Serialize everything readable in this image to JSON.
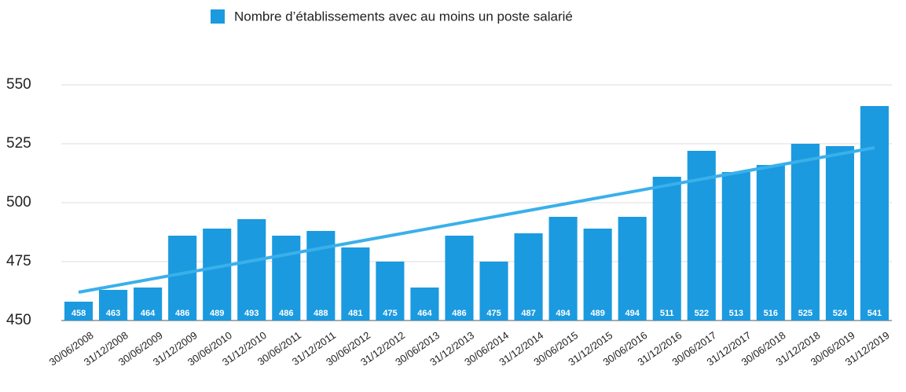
{
  "chart_data": {
    "type": "bar",
    "categories": [
      "30/06/2008",
      "31/12/2008",
      "30/06/2009",
      "31/12/2009",
      "30/06/2010",
      "31/12/2010",
      "30/06/2011",
      "31/12/2011",
      "30/06/2012",
      "31/12/2012",
      "30/06/2013",
      "31/12/2013",
      "30/06/2014",
      "31/12/2014",
      "30/06/2015",
      "31/12/2015",
      "30/06/2016",
      "31/12/2016",
      "30/06/2017",
      "31/12/2017",
      "30/06/2018",
      "31/12/2018",
      "30/06/2019",
      "31/12/2019"
    ],
    "series": [
      {
        "name": "Nombre d’établissements avec au moins un poste salarié",
        "color": "#1b9ae0",
        "values": [
          458,
          463,
          464,
          486,
          489,
          493,
          486,
          488,
          481,
          475,
          464,
          486,
          475,
          487,
          494,
          489,
          494,
          511,
          522,
          513,
          516,
          525,
          524,
          541
        ]
      }
    ],
    "trendline": true,
    "trendline_color": "#3ab0ea",
    "ylim": [
      450,
      550
    ],
    "yticks": [
      450,
      475,
      500,
      525,
      550
    ],
    "grid": true,
    "legend": "top"
  }
}
